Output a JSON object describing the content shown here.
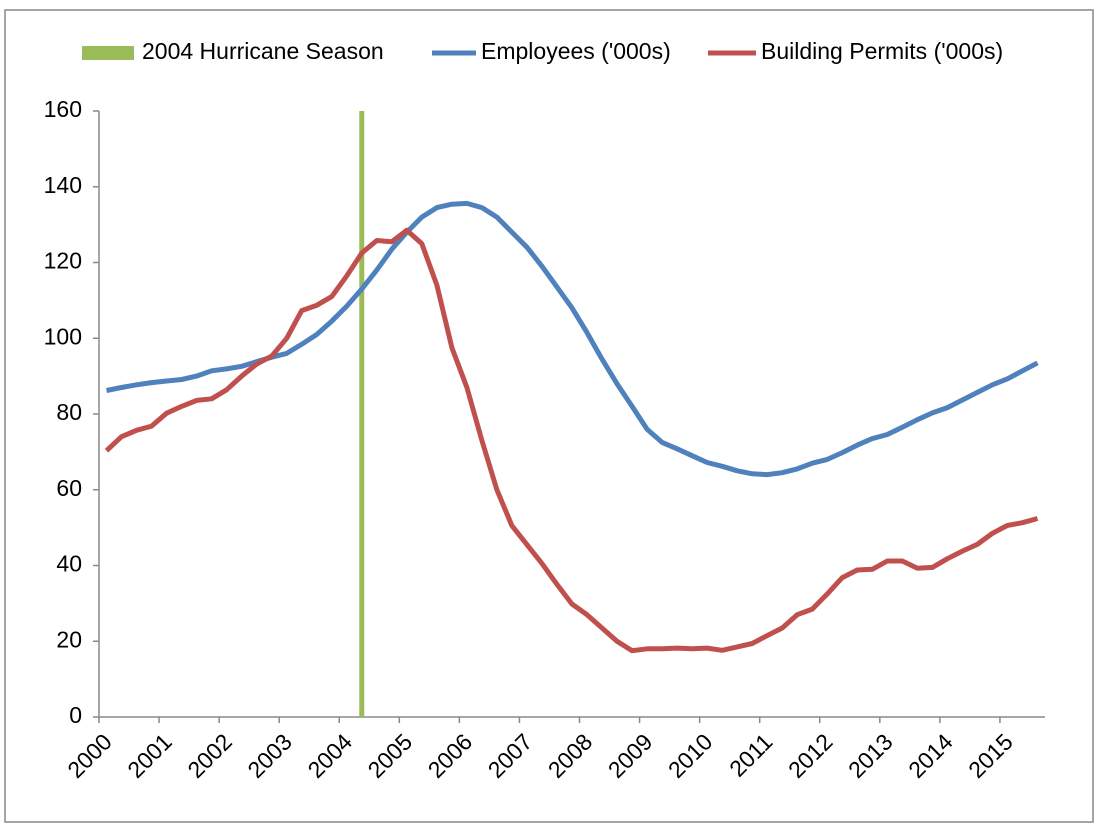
{
  "chart_data": {
    "type": "line",
    "x": [
      2000.125,
      2000.375,
      2000.625,
      2000.875,
      2001.125,
      2001.375,
      2001.625,
      2001.875,
      2002.125,
      2002.375,
      2002.625,
      2002.875,
      2003.125,
      2003.375,
      2003.625,
      2003.875,
      2004.125,
      2004.375,
      2004.625,
      2004.875,
      2005.125,
      2005.375,
      2005.625,
      2005.875,
      2006.125,
      2006.375,
      2006.625,
      2006.875,
      2007.125,
      2007.375,
      2007.625,
      2007.875,
      2008.125,
      2008.375,
      2008.625,
      2008.875,
      2009.125,
      2009.375,
      2009.625,
      2009.875,
      2010.125,
      2010.375,
      2010.625,
      2010.875,
      2011.125,
      2011.375,
      2011.625,
      2011.875,
      2012.125,
      2012.375,
      2012.625,
      2012.875,
      2013.125,
      2013.375,
      2013.625,
      2013.875,
      2014.125,
      2014.375,
      2014.625,
      2014.875,
      2015.125,
      2015.375,
      2015.625
    ],
    "hurricane": {
      "name": "2004 Hurricane Season",
      "color": "#9bbb59",
      "x": 2004.375,
      "value": 160
    },
    "series": [
      {
        "name": "Employees ('000s)",
        "color": "#4f81bd",
        "values": [
          86.2,
          87,
          87.7,
          88.3,
          88.7,
          89.1,
          90,
          91.4,
          91.9,
          92.6,
          93.8,
          95,
          96,
          98.4,
          101,
          104.5,
          108.5,
          113,
          118,
          123.5,
          128,
          132,
          134.5,
          135.4,
          135.6,
          134.5,
          132,
          128,
          124,
          119,
          113.5,
          108,
          101.5,
          94.5,
          88,
          82,
          76,
          72.5,
          70.8,
          69,
          67.2,
          66.2,
          65,
          64.2,
          64,
          64.5,
          65.5,
          67,
          68,
          69.8,
          71.8,
          73.5,
          74.6,
          76.5,
          78.5,
          80.3,
          81.7,
          83.7,
          85.7,
          87.7,
          89.3,
          91.4,
          93.5
        ]
      },
      {
        "name": "Building Permits ('000s)",
        "color": "#c0504d",
        "values": [
          70.3,
          74,
          75.7,
          76.8,
          80.2,
          82,
          83.6,
          84,
          86.4,
          90,
          93.2,
          95.3,
          100,
          107.3,
          108.7,
          111,
          116.5,
          122.5,
          125.8,
          125.5,
          128.5,
          125,
          114,
          97.5,
          87,
          73,
          60,
          50.5,
          45.5,
          40.5,
          35,
          29.8,
          27,
          23.5,
          20,
          17.5,
          18,
          18,
          18.2,
          18,
          18.2,
          17.6,
          18.5,
          19.4,
          21.5,
          23.5,
          27,
          28.5,
          32.5,
          36.8,
          38.8,
          39,
          41.2,
          41.2,
          39.3,
          39.5,
          41.8,
          43.8,
          45.6,
          48.5,
          50.6,
          51.3,
          52.4
        ]
      }
    ],
    "xlim": [
      2000,
      2015.75
    ],
    "xticks": [
      2000,
      2001,
      2002,
      2003,
      2004,
      2005,
      2006,
      2007,
      2008,
      2009,
      2010,
      2011,
      2012,
      2013,
      2014,
      2015
    ],
    "ylim": [
      0,
      160
    ],
    "yticks": [
      0,
      20,
      40,
      60,
      80,
      100,
      120,
      140,
      160
    ],
    "grid": false,
    "legend": "top"
  }
}
